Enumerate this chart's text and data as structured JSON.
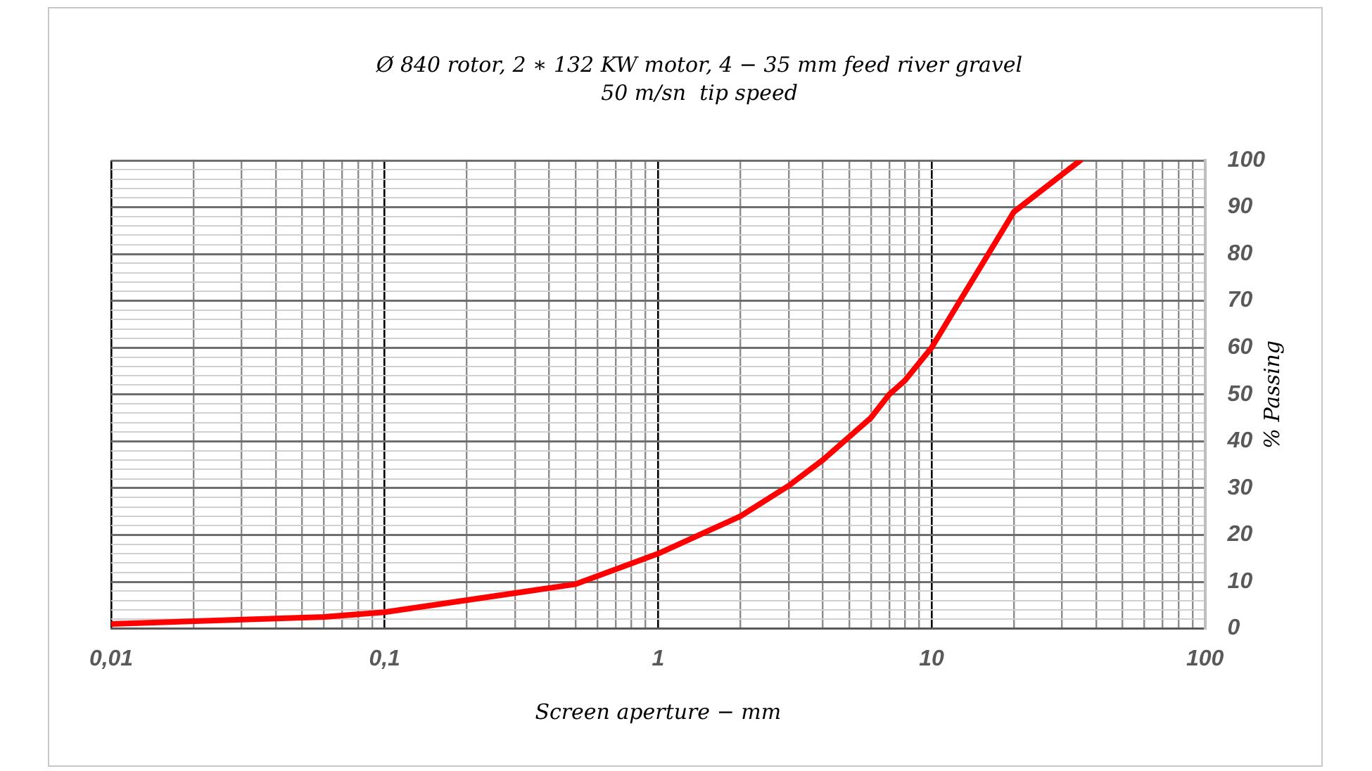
{
  "chart_data": {
    "type": "line",
    "title": "Ø 840 rotor, 2 ∗ 132 KW motor, 4 − 35 mm feed river gravel",
    "subtitle": "50 m/sn  tip speed",
    "xlabel": "Screen aperture − mm",
    "ylabel": "% Passing",
    "x": [
      0.01,
      0.06,
      0.1,
      0.5,
      1,
      2,
      3,
      4,
      6,
      7,
      8,
      10,
      20,
      35
    ],
    "series": [
      {
        "color": "#ff0000",
        "values": [
          1,
          2.5,
          3.5,
          9.5,
          16,
          24,
          30.5,
          36,
          45,
          50,
          53,
          60,
          89,
          100
        ]
      }
    ],
    "log": "x",
    "xlim": [
      0.01,
      100
    ],
    "ylim": [
      0,
      100
    ],
    "xticks": [
      {
        "value": 0.01,
        "label": "0,01"
      },
      {
        "value": 0.02,
        "label": null
      },
      {
        "value": 0.03,
        "label": null
      },
      {
        "value": 0.04,
        "label": null
      },
      {
        "value": 0.05,
        "label": null
      },
      {
        "value": 0.06,
        "label": null
      },
      {
        "value": 0.07,
        "label": null
      },
      {
        "value": 0.08,
        "label": null
      },
      {
        "value": 0.09,
        "label": null
      },
      {
        "value": 0.1,
        "label": "0,1"
      },
      {
        "value": 0.2,
        "label": null
      },
      {
        "value": 0.3,
        "label": null
      },
      {
        "value": 0.4,
        "label": null
      },
      {
        "value": 0.5,
        "label": null
      },
      {
        "value": 0.6,
        "label": null
      },
      {
        "value": 0.7,
        "label": null
      },
      {
        "value": 0.8,
        "label": null
      },
      {
        "value": 0.9,
        "label": null
      },
      1,
      {
        "value": 2,
        "label": null
      },
      {
        "value": 3,
        "label": null
      },
      {
        "value": 4,
        "label": null
      },
      {
        "value": 5,
        "label": null
      },
      {
        "value": 6,
        "label": null
      },
      {
        "value": 7,
        "label": null
      },
      {
        "value": 8,
        "label": null
      },
      {
        "value": 9,
        "label": null
      },
      10,
      {
        "value": 20,
        "label": null
      },
      {
        "value": 30,
        "label": null
      },
      {
        "value": 40,
        "label": null
      },
      {
        "value": 50,
        "label": null
      },
      {
        "value": 60,
        "label": null
      },
      {
        "value": 70,
        "label": null
      },
      {
        "value": 80,
        "label": null
      },
      {
        "value": 90,
        "label": null
      },
      100
    ],
    "yticks": [
      0,
      {
        "value": 2,
        "label": null
      },
      {
        "value": 4,
        "label": null
      },
      {
        "value": 6,
        "label": null
      },
      {
        "value": 8,
        "label": null
      },
      10,
      {
        "value": 12,
        "label": null
      },
      {
        "value": 14,
        "label": null
      },
      {
        "value": 16,
        "label": null
      },
      {
        "value": 18,
        "label": null
      },
      20,
      {
        "value": 22,
        "label": null
      },
      {
        "value": 24,
        "label": null
      },
      {
        "value": 26,
        "label": null
      },
      {
        "value": 28,
        "label": null
      },
      30,
      {
        "value": 32,
        "label": null
      },
      {
        "value": 34,
        "label": null
      },
      {
        "value": 36,
        "label": null
      },
      {
        "value": 38,
        "label": null
      },
      40,
      {
        "value": 42,
        "label": null
      },
      {
        "value": 44,
        "label": null
      },
      {
        "value": 46,
        "label": null
      },
      {
        "value": 48,
        "label": null
      },
      50,
      {
        "value": 52,
        "label": null
      },
      {
        "value": 54,
        "label": null
      },
      {
        "value": 56,
        "label": null
      },
      {
        "value": 58,
        "label": null
      },
      60,
      {
        "value": 62,
        "label": null
      },
      {
        "value": 64,
        "label": null
      },
      {
        "value": 66,
        "label": null
      },
      {
        "value": 68,
        "label": null
      },
      70,
      {
        "value": 72,
        "label": null
      },
      {
        "value": 74,
        "label": null
      },
      {
        "value": 76,
        "label": null
      },
      {
        "value": 78,
        "label": null
      },
      80,
      {
        "value": 82,
        "label": null
      },
      {
        "value": 84,
        "label": null
      },
      {
        "value": 86,
        "label": null
      },
      {
        "value": 88,
        "label": null
      },
      90,
      {
        "value": 92,
        "label": null
      },
      {
        "value": 94,
        "label": null
      },
      {
        "value": 96,
        "label": null
      },
      {
        "value": 98,
        "label": null
      },
      100
    ],
    "grid": true,
    "marker": "none",
    "line_style": "solid",
    "legend": false
  }
}
